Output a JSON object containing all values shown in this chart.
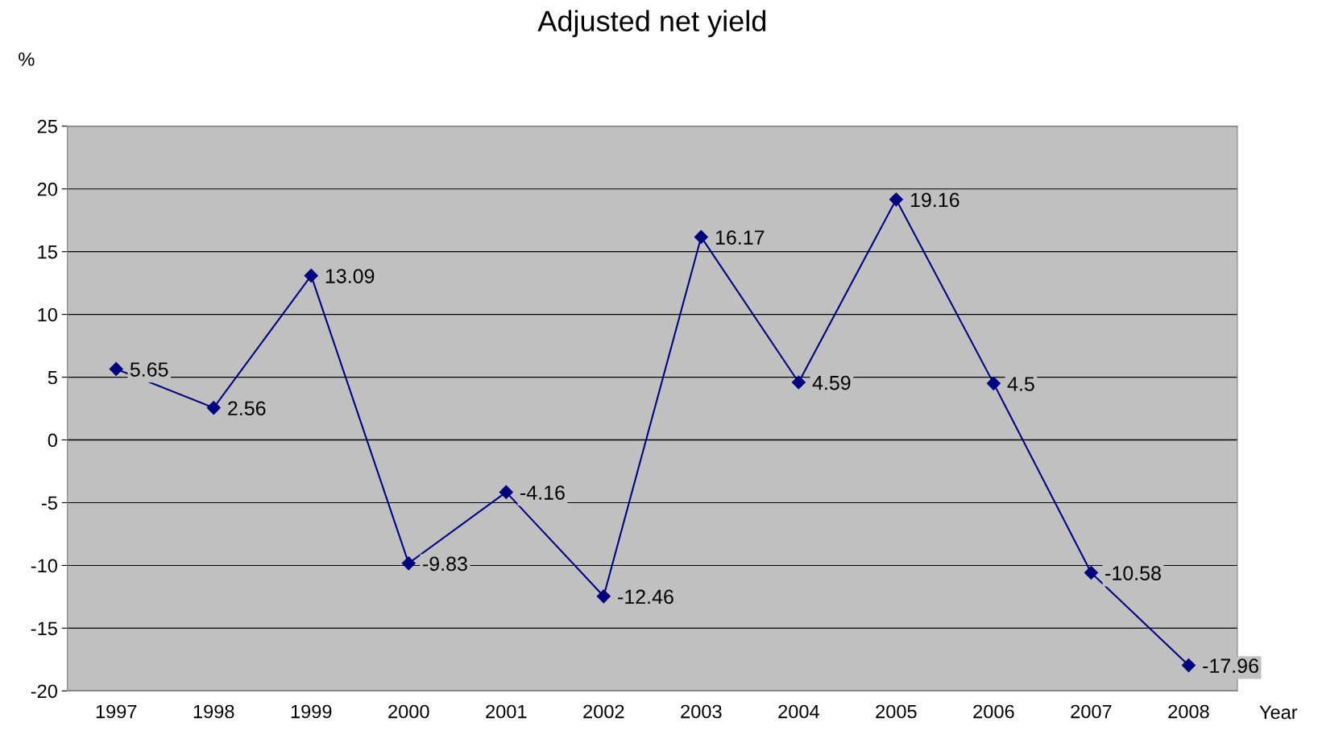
{
  "chart_data": {
    "type": "line",
    "title": "Adjusted net yield",
    "xlabel": "Year",
    "ylabel": "%",
    "categories": [
      "1997",
      "1998",
      "1999",
      "2000",
      "2001",
      "2002",
      "2003",
      "2004",
      "2005",
      "2006",
      "2007",
      "2008"
    ],
    "series": [
      {
        "color": "#000080",
        "values": [
          5.65,
          2.56,
          13.09,
          -9.83,
          -4.16,
          -12.46,
          16.17,
          4.59,
          19.16,
          4.5,
          -10.58,
          -17.96
        ]
      }
    ],
    "ylim": [
      -20,
      25
    ],
    "yticks": [
      -20,
      -15,
      -10,
      -5,
      0,
      5,
      10,
      15,
      20,
      25
    ],
    "grid": "y",
    "marker": "diamond",
    "line_style": "solid",
    "data_labels": true
  }
}
